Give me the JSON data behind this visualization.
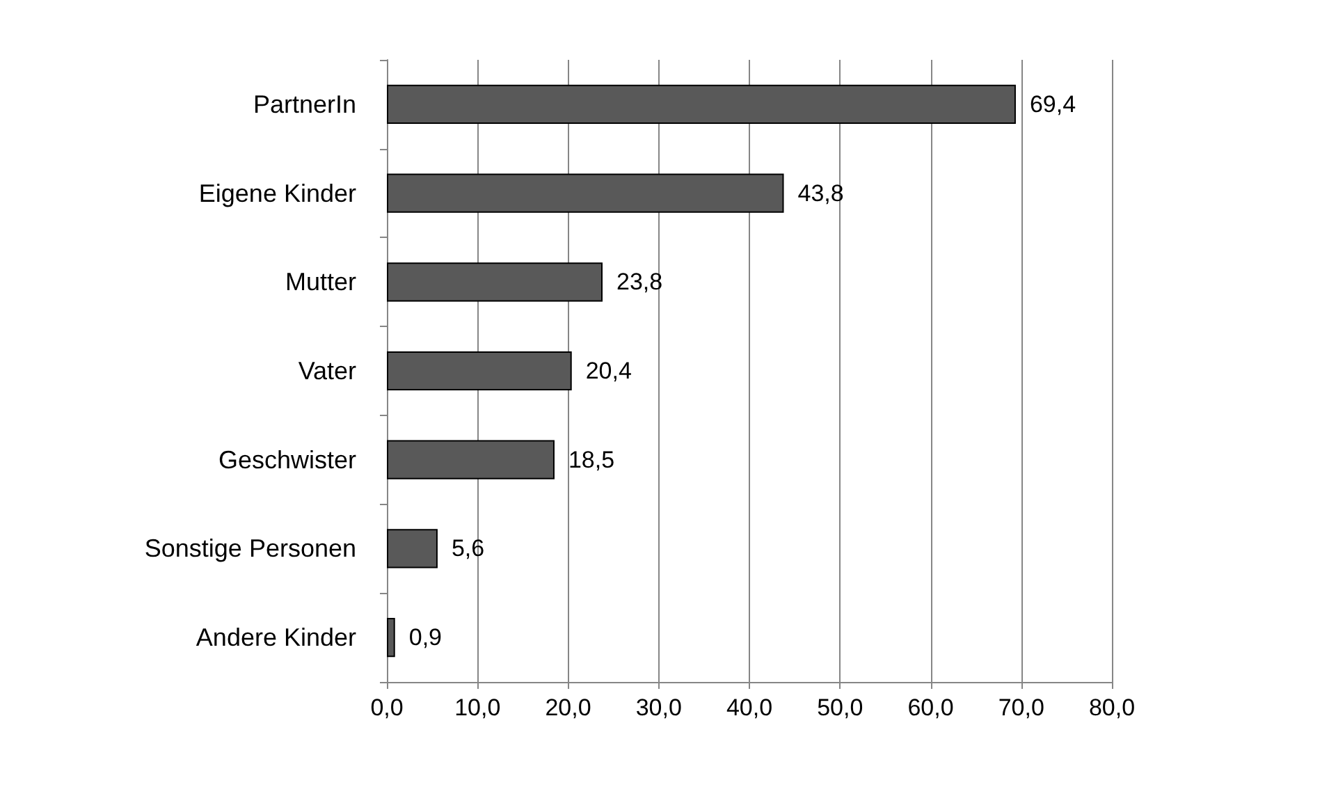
{
  "chart_data": {
    "type": "bar",
    "orientation": "horizontal",
    "categories": [
      "PartnerIn",
      "Eigene Kinder",
      "Mutter",
      "Vater",
      "Geschwister",
      "Sonstige Personen",
      "Andere Kinder"
    ],
    "values": [
      69.4,
      43.8,
      23.8,
      20.4,
      18.5,
      5.6,
      0.9
    ],
    "value_labels": [
      "69,4",
      "43,8",
      "23,8",
      "20,4",
      "18,5",
      "5,6",
      "0,9"
    ],
    "color": "#595959",
    "xlim": [
      0,
      80
    ],
    "xticks": [
      {
        "value": 0,
        "label": "0,0"
      },
      {
        "value": 10,
        "label": "10,0"
      },
      {
        "value": 20,
        "label": "20,0"
      },
      {
        "value": 30,
        "label": "30,0"
      },
      {
        "value": 40,
        "label": "40,0"
      },
      {
        "value": 50,
        "label": "50,0"
      },
      {
        "value": 60,
        "label": "60,0"
      },
      {
        "value": 70,
        "label": "70,0"
      },
      {
        "value": 80,
        "label": "80,0"
      }
    ],
    "grid": "x"
  }
}
